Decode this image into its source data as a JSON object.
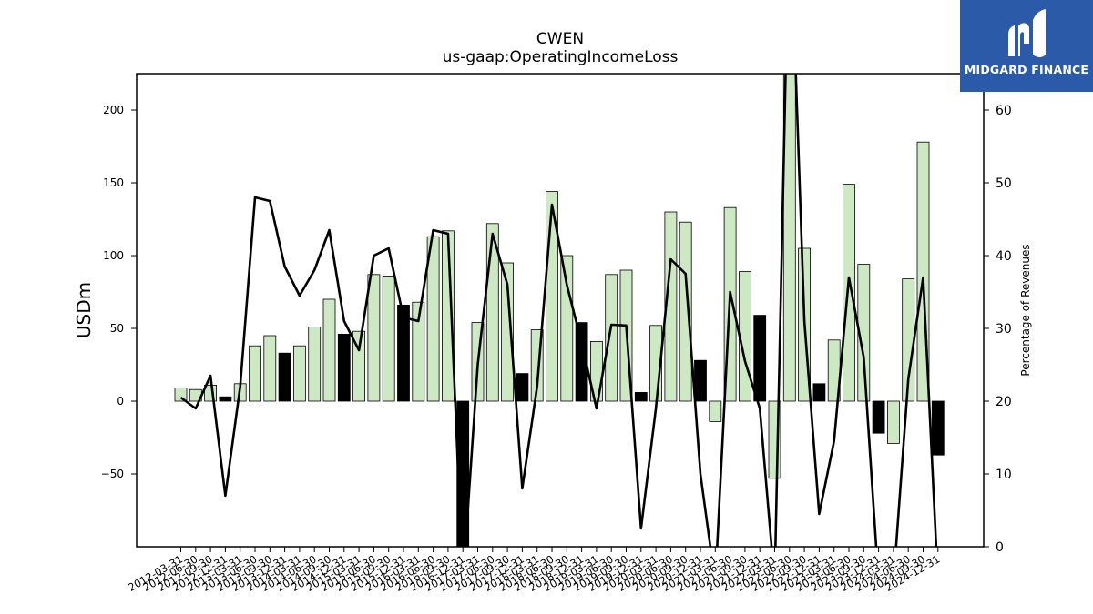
{
  "header": {
    "title": "CWEN",
    "subtitle": "us-gaap:OperatingIncomeLoss"
  },
  "logo": {
    "text": "MIDGARD FINANCE",
    "background": "#2b5aa8"
  },
  "chart_data": {
    "type": "bar",
    "title": "CWEN",
    "subtitle": "us-gaap:OperatingIncomeLoss",
    "ylabel": "USDm",
    "y2label": "Percentage of Revenues",
    "ylim": [
      -100,
      225
    ],
    "y2lim": [
      0,
      65
    ],
    "yticks": [
      -50,
      0,
      50,
      100,
      150,
      200
    ],
    "y2ticks": [
      0,
      10,
      20,
      30,
      40,
      50,
      60
    ],
    "colors": {
      "bar_quarter": "#cce9c4",
      "bar_year_end": "#000000",
      "line": "#000000"
    },
    "categories": [
      "2012-03-31",
      "2012-06-30",
      "2012-09-30",
      "2012-12-31",
      "2013-03-31",
      "2013-06-30",
      "2013-09-30",
      "2013-12-31",
      "2014-03-31",
      "2014-06-30",
      "2014-09-30",
      "2014-12-31",
      "2015-03-31",
      "2015-06-30",
      "2015-09-30",
      "2015-12-31",
      "2016-03-31",
      "2016-06-30",
      "2016-09-30",
      "2016-12-31",
      "2017-03-31",
      "2017-06-30",
      "2017-09-30",
      "2017-12-31",
      "2018-03-31",
      "2018-06-30",
      "2018-09-30",
      "2018-12-31",
      "2019-03-31",
      "2019-06-30",
      "2019-09-30",
      "2019-12-31",
      "2020-03-31",
      "2020-06-30",
      "2020-09-30",
      "2020-12-31",
      "2021-03-31",
      "2021-06-30",
      "2021-09-30",
      "2021-12-31",
      "2022-03-31",
      "2022-06-30",
      "2022-09-30",
      "2022-12-31",
      "2023-03-31",
      "2023-06-30",
      "2023-09-30",
      "2023-12-31",
      "2024-03-31",
      "2024-06-30",
      "2024-09-30",
      "2024-12-31"
    ],
    "values": [
      9,
      8,
      11,
      3,
      12,
      38,
      45,
      33,
      38,
      51,
      70,
      46,
      48,
      87,
      86,
      66,
      68,
      113,
      117,
      -100,
      54,
      122,
      95,
      19,
      49,
      144,
      100,
      54,
      41,
      87,
      90,
      6,
      52,
      130,
      123,
      28,
      -14,
      133,
      89,
      59,
      -53,
      225,
      105,
      12,
      42,
      149,
      94,
      -22,
      -29,
      84,
      178,
      -37
    ],
    "year_end": [
      false,
      false,
      false,
      true,
      false,
      false,
      false,
      true,
      false,
      false,
      false,
      true,
      false,
      false,
      false,
      true,
      false,
      false,
      false,
      true,
      false,
      false,
      false,
      true,
      false,
      false,
      false,
      true,
      false,
      false,
      false,
      true,
      false,
      false,
      false,
      true,
      false,
      false,
      false,
      true,
      false,
      false,
      false,
      true,
      false,
      false,
      false,
      true,
      false,
      false,
      false,
      true
    ],
    "percent_of_revenues": [
      20.5,
      19,
      23.5,
      7,
      22,
      48,
      47.5,
      38.5,
      34.5,
      38,
      43.5,
      31,
      27,
      40,
      41,
      31.5,
      31,
      43.5,
      43,
      -5,
      25,
      43,
      36,
      8,
      22,
      47,
      36,
      28,
      19,
      30.5,
      30.4,
      2.5,
      19,
      39.5,
      37.5,
      10,
      -5,
      35,
      25.5,
      19,
      -5,
      90,
      31,
      4.5,
      14.5,
      37,
      26,
      -5,
      -5,
      23,
      37,
      -5
    ]
  }
}
